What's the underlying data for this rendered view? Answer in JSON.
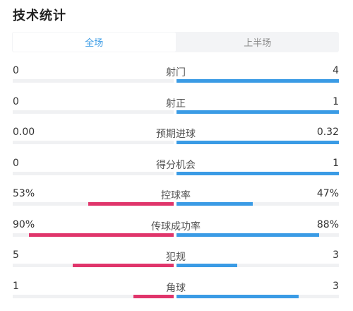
{
  "header": {
    "title": "技术统计"
  },
  "tabs": [
    {
      "label": "全场",
      "active": true
    },
    {
      "label": "上半场",
      "active": false
    }
  ],
  "colors": {
    "home": "#e0356b",
    "away": "#3a9be5",
    "track": "#f0f1f3"
  },
  "stats": [
    {
      "label": "射门",
      "home": "0",
      "away": "4",
      "home_share": 0,
      "away_share": 1.0
    },
    {
      "label": "射正",
      "home": "0",
      "away": "1",
      "home_share": 0,
      "away_share": 1.0
    },
    {
      "label": "预期进球",
      "home": "0.00",
      "away": "0.32",
      "home_share": 0,
      "away_share": 1.0
    },
    {
      "label": "得分机会",
      "home": "0",
      "away": "1",
      "home_share": 0,
      "away_share": 1.0
    },
    {
      "label": "控球率",
      "home": "53%",
      "away": "47%",
      "home_share": 0.53,
      "away_share": 0.47
    },
    {
      "label": "传球成功率",
      "home": "90%",
      "away": "88%",
      "home_share": 0.9,
      "away_share": 0.88
    },
    {
      "label": "犯规",
      "home": "5",
      "away": "3",
      "home_share": 0.625,
      "away_share": 0.375
    },
    {
      "label": "角球",
      "home": "1",
      "away": "3",
      "home_share": 0.25,
      "away_share": 0.75
    }
  ]
}
